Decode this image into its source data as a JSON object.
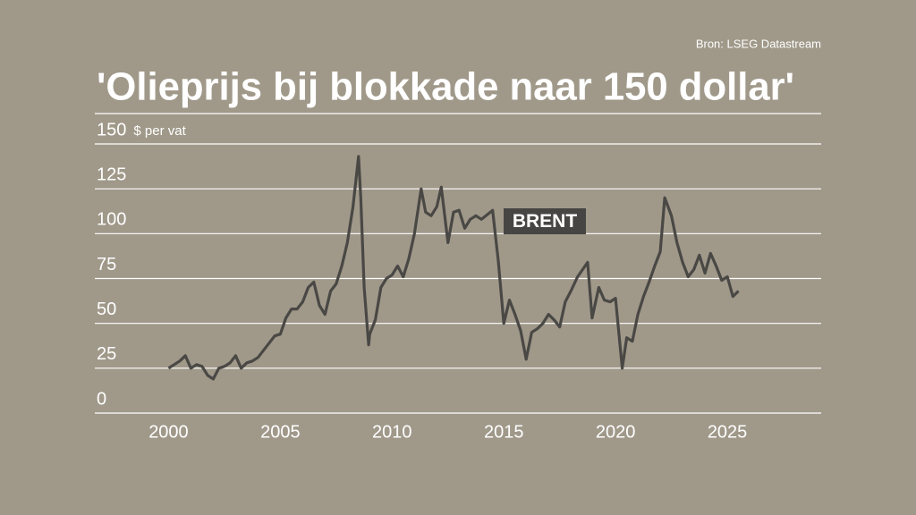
{
  "chart_data": {
    "type": "line",
    "title": "'Olieprijs bij blokkade naar 150 dollar'",
    "source": "Bron: LSEG Datastream",
    "y_label": "$ per vat",
    "annotation": "BRENT",
    "xlim": [
      1996.7,
      2029.2
    ],
    "xticks": [
      2000,
      2005,
      2010,
      2015,
      2020,
      2025
    ],
    "ylim": [
      0,
      150
    ],
    "yticks": [
      0,
      25,
      50,
      75,
      100,
      125,
      150
    ],
    "grid": true,
    "x": [
      2000.0,
      2000.25,
      2000.5,
      2000.75,
      2001.0,
      2001.25,
      2001.5,
      2001.75,
      2002.0,
      2002.25,
      2002.5,
      2002.75,
      2003.0,
      2003.25,
      2003.5,
      2003.75,
      2004.0,
      2004.25,
      2004.5,
      2004.75,
      2005.0,
      2005.25,
      2005.5,
      2005.75,
      2006.0,
      2006.25,
      2006.5,
      2006.75,
      2007.0,
      2007.25,
      2007.5,
      2007.75,
      2008.0,
      2008.25,
      2008.5,
      2008.6,
      2008.75,
      2008.95,
      2009.0,
      2009.25,
      2009.5,
      2009.75,
      2010.0,
      2010.25,
      2010.5,
      2010.75,
      2011.0,
      2011.3,
      2011.5,
      2011.75,
      2012.0,
      2012.2,
      2012.5,
      2012.75,
      2013.0,
      2013.25,
      2013.5,
      2013.75,
      2014.0,
      2014.5,
      2014.75,
      2015.0,
      2015.25,
      2015.5,
      2015.75,
      2016.0,
      2016.25,
      2016.5,
      2016.75,
      2017.0,
      2017.25,
      2017.5,
      2017.75,
      2018.0,
      2018.3,
      2018.75,
      2018.95,
      2019.25,
      2019.5,
      2019.75,
      2020.0,
      2020.3,
      2020.5,
      2020.75,
      2021.0,
      2021.25,
      2021.5,
      2021.75,
      2022.0,
      2022.2,
      2022.5,
      2022.75,
      2023.0,
      2023.25,
      2023.5,
      2023.75,
      2024.0,
      2024.25,
      2024.5,
      2024.75,
      2025.0,
      2025.25,
      2025.5
    ],
    "series": [
      {
        "name": "Brent",
        "color": "#4a4845",
        "values": [
          25,
          27,
          29,
          32,
          25,
          27,
          26,
          21,
          19,
          25,
          26,
          28,
          32,
          25,
          28,
          29,
          31,
          35,
          39,
          43,
          44,
          53,
          58,
          58,
          62,
          70,
          73,
          60,
          55,
          68,
          72,
          82,
          95,
          115,
          143,
          120,
          70,
          38,
          44,
          52,
          70,
          75,
          77,
          82,
          76,
          86,
          100,
          125,
          112,
          110,
          115,
          126,
          95,
          112,
          113,
          103,
          108,
          110,
          108,
          113,
          85,
          50,
          63,
          55,
          46,
          30,
          45,
          47,
          50,
          55,
          52,
          48,
          62,
          68,
          76,
          84,
          53,
          70,
          63,
          62,
          64,
          25,
          42,
          40,
          55,
          65,
          73,
          82,
          90,
          120,
          110,
          95,
          84,
          76,
          80,
          88,
          78,
          89,
          82,
          74,
          76,
          65,
          68
        ]
      }
    ]
  }
}
